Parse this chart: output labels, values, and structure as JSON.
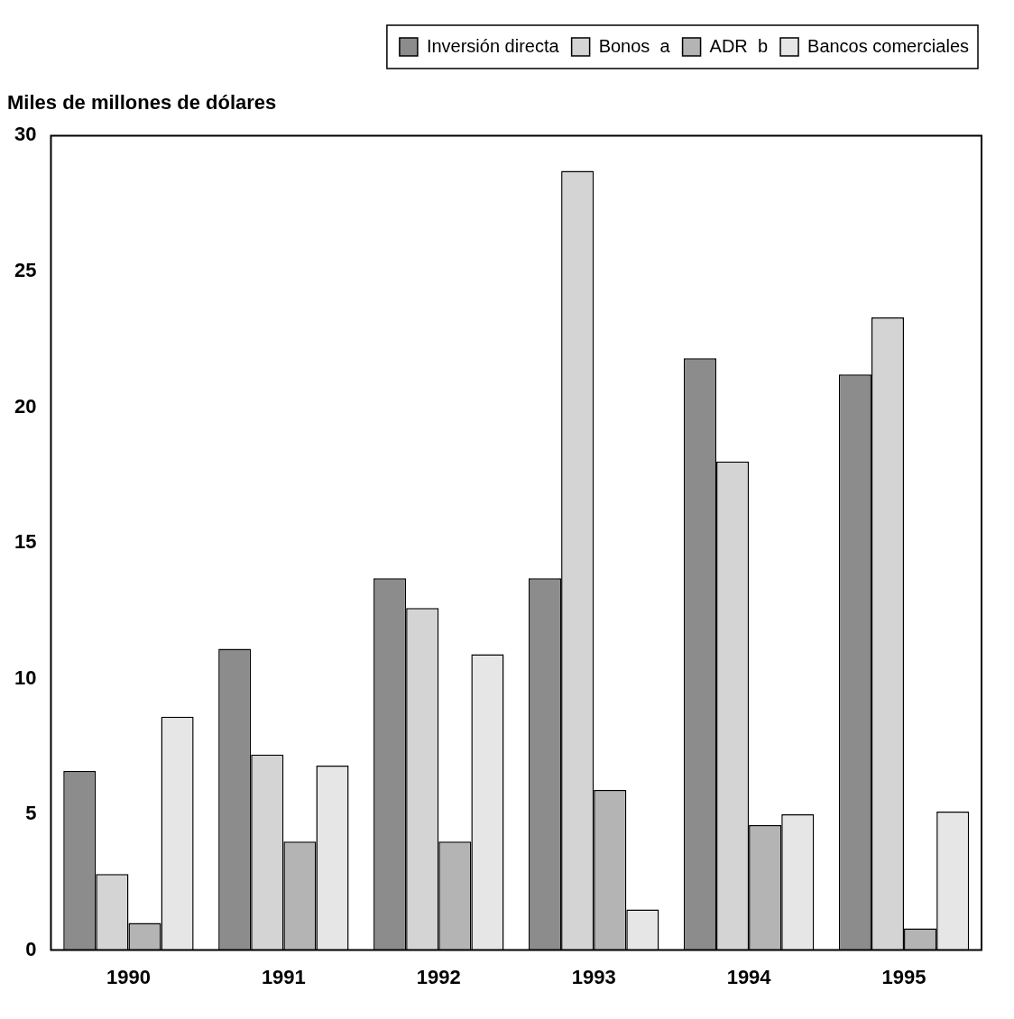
{
  "chart_data": {
    "type": "bar",
    "ylabel": "Miles de millones de dólares",
    "categories": [
      "1990",
      "1991",
      "1992",
      "1993",
      "1994",
      "1995"
    ],
    "series": [
      {
        "name": "Inversión directa",
        "color": "#8c8c8c",
        "values": [
          6.6,
          11.1,
          13.7,
          13.7,
          21.8,
          21.2
        ]
      },
      {
        "name": "Bonos  a",
        "color": "#d4d4d4",
        "values": [
          2.8,
          7.2,
          12.6,
          28.7,
          18.0,
          23.3
        ]
      },
      {
        "name": "ADR  b",
        "color": "#b4b4b4",
        "values": [
          1.0,
          4.0,
          4.0,
          5.9,
          4.6,
          0.8
        ]
      },
      {
        "name": "Bancos comerciales",
        "color": "#e6e6e6",
        "values": [
          8.6,
          6.8,
          10.9,
          1.5,
          5.0,
          5.1
        ]
      }
    ],
    "ylim": [
      0,
      30
    ],
    "yticks": [
      0,
      5,
      10,
      15,
      20,
      25,
      30
    ],
    "grid": false,
    "legend": "top right"
  }
}
